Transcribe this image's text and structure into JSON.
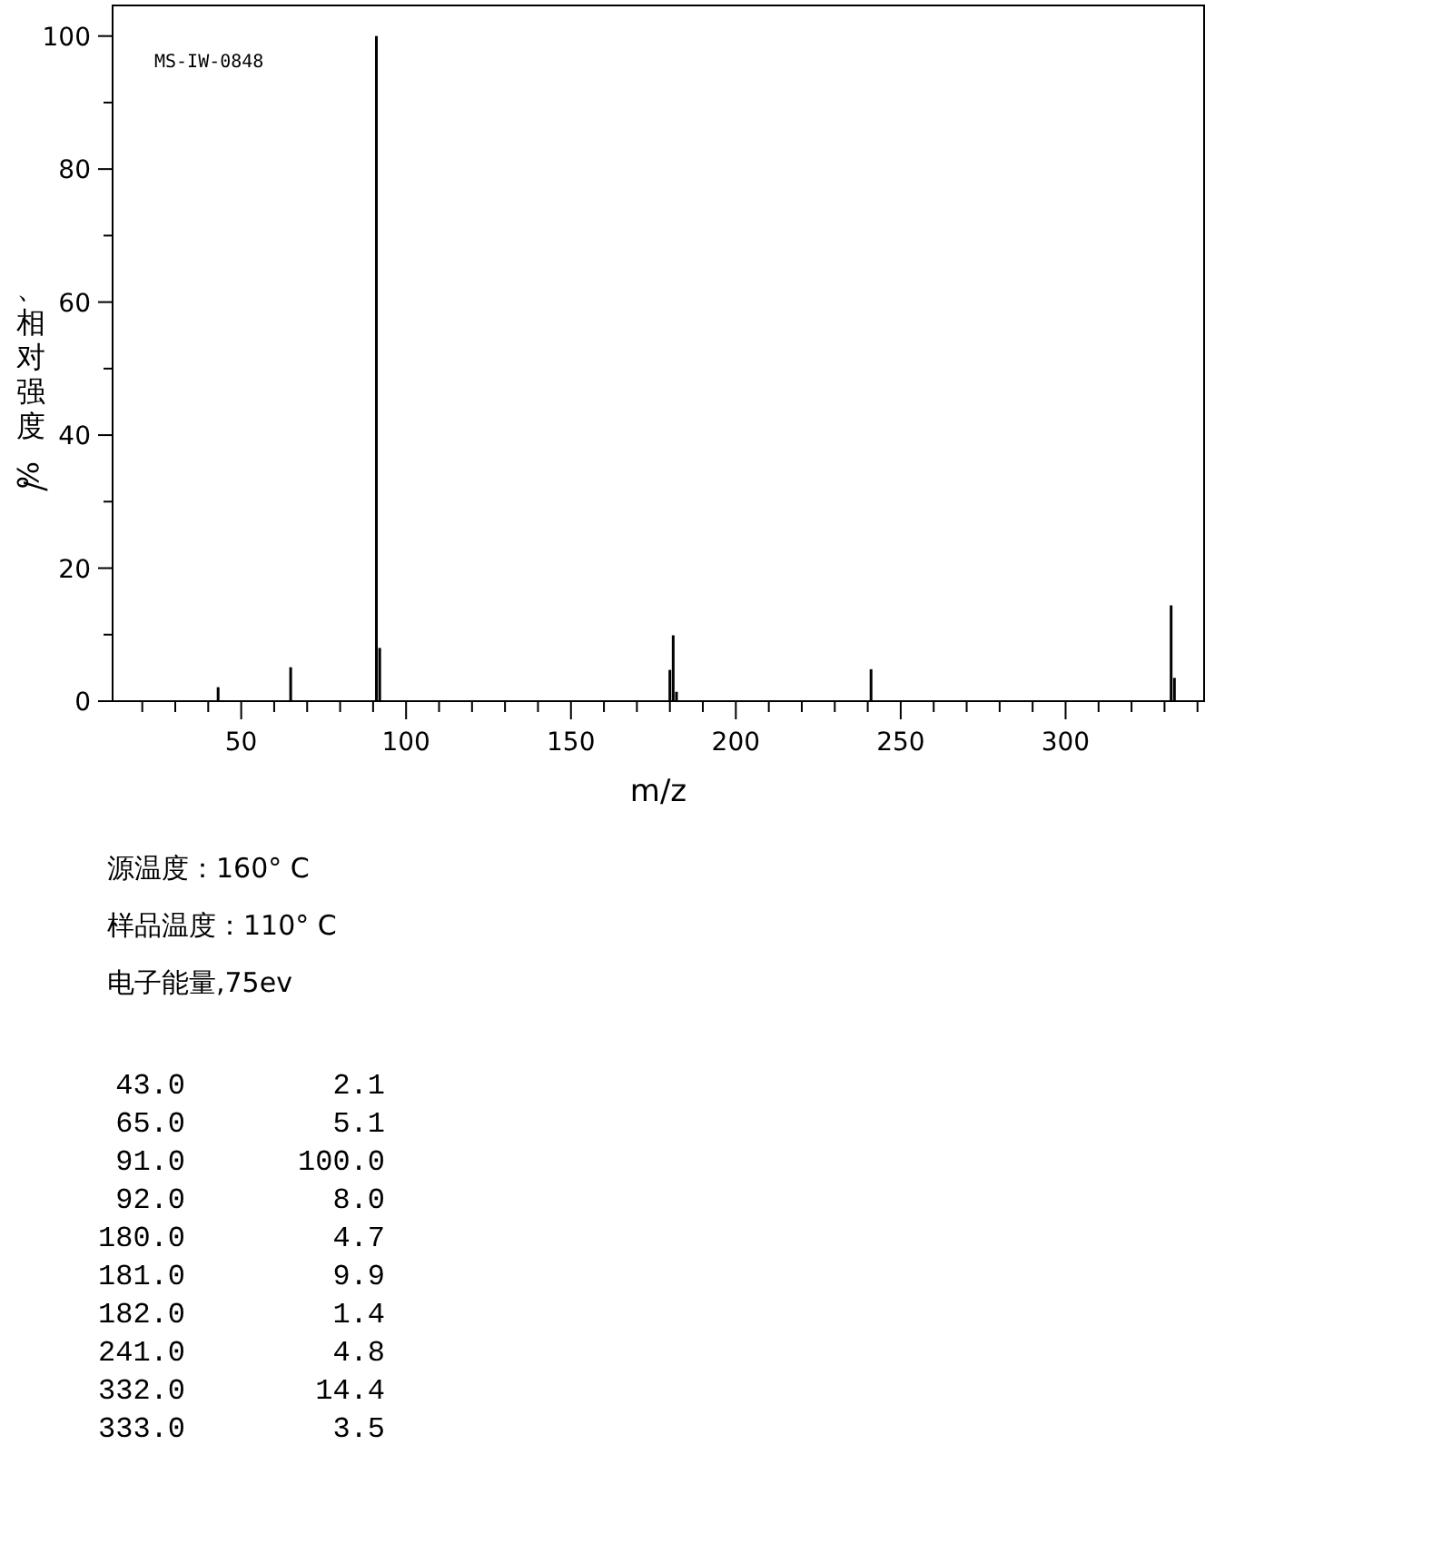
{
  "chart_data": {
    "type": "bar",
    "xlabel": "m/z",
    "ylabel": "、相对强度%/",
    "x": [
      43,
      65,
      91,
      92,
      180,
      181,
      182,
      241,
      332,
      333
    ],
    "values": [
      2.1,
      5.1,
      100.0,
      8.0,
      4.7,
      9.9,
      1.4,
      4.8,
      14.4,
      3.5
    ],
    "color": "#000000",
    "grid": false,
    "xlim": [
      11,
      342
    ],
    "xticks": [
      {
        "value": 20,
        "label": null
      },
      {
        "value": 30,
        "label": null
      },
      {
        "value": 40,
        "label": null
      },
      50,
      {
        "value": 60,
        "label": null
      },
      {
        "value": 70,
        "label": null
      },
      {
        "value": 80,
        "label": null
      },
      {
        "value": 90,
        "label": null
      },
      100,
      {
        "value": 110,
        "label": null
      },
      {
        "value": 120,
        "label": null
      },
      {
        "value": 130,
        "label": null
      },
      {
        "value": 140,
        "label": null
      },
      150,
      {
        "value": 160,
        "label": null
      },
      {
        "value": 170,
        "label": null
      },
      {
        "value": 180,
        "label": null
      },
      {
        "value": 190,
        "label": null
      },
      200,
      {
        "value": 210,
        "label": null
      },
      {
        "value": 220,
        "label": null
      },
      {
        "value": 230,
        "label": null
      },
      {
        "value": 240,
        "label": null
      },
      250,
      {
        "value": 260,
        "label": null
      },
      {
        "value": 270,
        "label": null
      },
      {
        "value": 280,
        "label": null
      },
      {
        "value": 290,
        "label": null
      },
      300,
      {
        "value": 310,
        "label": null
      },
      {
        "value": 320,
        "label": null
      },
      {
        "value": 330,
        "label": null
      },
      {
        "value": 340,
        "label": null
      }
    ],
    "ylim": [
      0,
      104.6
    ],
    "yticks": [
      0,
      {
        "value": 10,
        "label": null
      },
      20,
      {
        "value": 30,
        "label": null
      },
      40,
      {
        "value": 50,
        "label": null
      },
      60,
      {
        "value": 70,
        "label": null
      },
      80,
      {
        "value": 90,
        "label": null
      },
      100
    ],
    "annotations": [
      "MS-IW-0848",
      "源温度：160° C",
      "样品温度：110° C",
      "电子能量,75ev",
      "43.0",
      "2.1",
      "65.0",
      "5.1",
      "91.0",
      "100.0",
      "92.0",
      "8.0",
      "180.0",
      "4.7",
      "181.0",
      "9.9",
      "182.0",
      "1.4",
      "241.0",
      "4.8",
      "332.0",
      "14.4",
      "333.0",
      "3.5"
    ]
  }
}
